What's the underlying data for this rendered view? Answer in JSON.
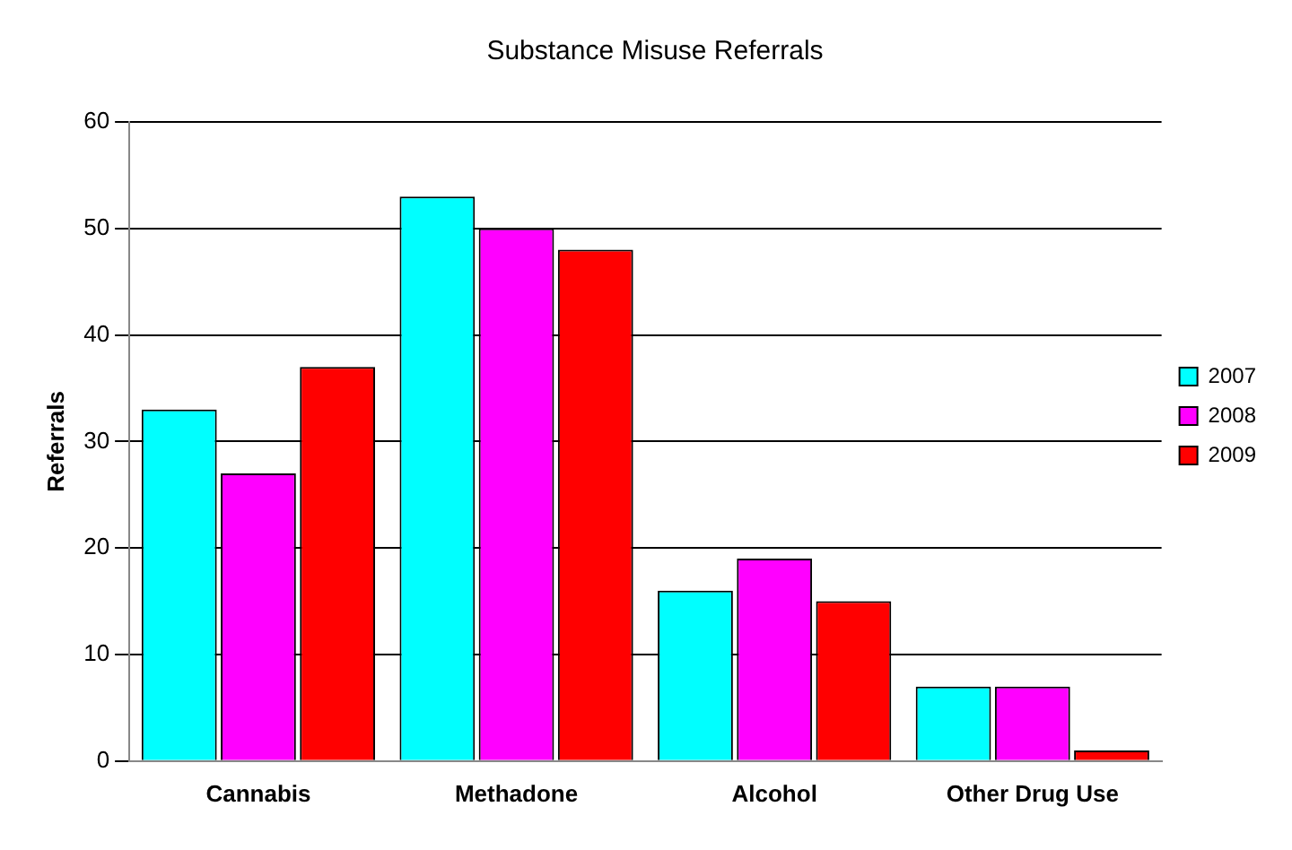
{
  "chart_data": {
    "type": "bar",
    "title": "Substance Misuse Referrals",
    "ylabel": "Referrals",
    "categories": [
      "Cannabis",
      "Methadone",
      "Alcohol",
      "Other Drug Use"
    ],
    "series": [
      {
        "name": "2007",
        "color": "#00ffff",
        "values": [
          33,
          53,
          16,
          7
        ]
      },
      {
        "name": "2008",
        "color": "#ff00ff",
        "values": [
          27,
          50,
          19,
          7
        ]
      },
      {
        "name": "2009",
        "color": "#ff0000",
        "values": [
          37,
          48,
          15,
          1
        ]
      }
    ],
    "ylim": [
      0,
      60
    ],
    "yticks": [
      0,
      10,
      20,
      30,
      40,
      50,
      60
    ],
    "grid": "y",
    "legend": "right"
  }
}
